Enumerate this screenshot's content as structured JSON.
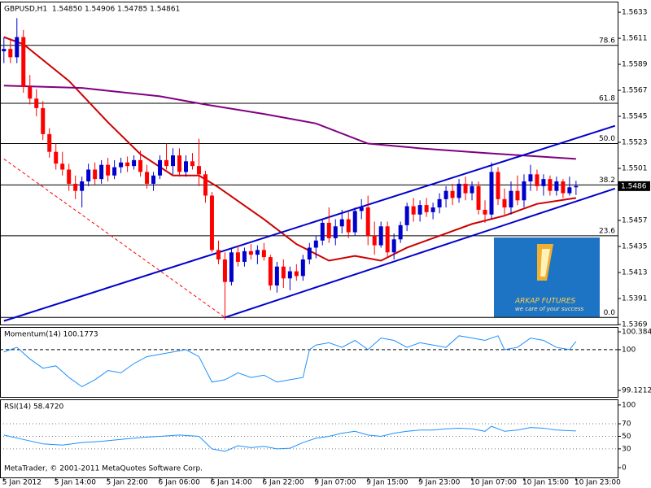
{
  "chart_data": [
    {
      "type": "candlestick",
      "title": "GBPUSD,H1  1.54850 1.54906 1.54785 1.54861",
      "xlim": [
        -0.6,
        94.4
      ],
      "ylim": [
        1.5369,
        1.5642
      ],
      "yticks": [
        1.5633,
        1.5611,
        1.5589,
        1.5567,
        1.5545,
        1.5523,
        1.5501,
        1.5457,
        1.5435,
        1.5413,
        1.5391,
        1.5369
      ],
      "last_price": 1.5486,
      "up_color": "#0000cc",
      "down_color": "#ff0000",
      "candles": [
        [
          1.56,
          1.5612,
          1.559,
          1.5602
        ],
        [
          1.5602,
          1.561,
          1.559,
          1.5595
        ],
        [
          1.5595,
          1.5628,
          1.559,
          1.5612
        ],
        [
          1.5612,
          1.5618,
          1.5565,
          1.557
        ],
        [
          1.557,
          1.558,
          1.5555,
          1.556
        ],
        [
          1.556,
          1.5568,
          1.5545,
          1.5552
        ],
        [
          1.5552,
          1.5558,
          1.5525,
          1.553
        ],
        [
          1.553,
          1.5535,
          1.551,
          1.5515
        ],
        [
          1.5515,
          1.5522,
          1.55,
          1.5505
        ],
        [
          1.5505,
          1.5515,
          1.5495,
          1.55
        ],
        [
          1.55,
          1.5505,
          1.5482,
          1.5488
        ],
        [
          1.5488,
          1.5495,
          1.5475,
          1.5482
        ],
        [
          1.5482,
          1.5494,
          1.5468,
          1.549
        ],
        [
          1.549,
          1.5505,
          1.5486,
          1.55
        ],
        [
          1.55,
          1.5506,
          1.5487,
          1.5492
        ],
        [
          1.5492,
          1.5508,
          1.5488,
          1.5504
        ],
        [
          1.5504,
          1.551,
          1.549,
          1.5495
        ],
        [
          1.5495,
          1.5508,
          1.5492,
          1.5502
        ],
        [
          1.5502,
          1.551,
          1.5497,
          1.5506
        ],
        [
          1.5506,
          1.5511,
          1.5498,
          1.5503
        ],
        [
          1.5503,
          1.5512,
          1.55,
          1.5508
        ],
        [
          1.5508,
          1.5516,
          1.5494,
          1.5498
        ],
        [
          1.5498,
          1.5504,
          1.5484,
          1.5488
        ],
        [
          1.5488,
          1.5498,
          1.5482,
          1.5495
        ],
        [
          1.5495,
          1.5512,
          1.5492,
          1.5508
        ],
        [
          1.5508,
          1.5522,
          1.55,
          1.5503
        ],
        [
          1.5503,
          1.5518,
          1.5496,
          1.5512
        ],
        [
          1.5512,
          1.5518,
          1.5494,
          1.5498
        ],
        [
          1.5498,
          1.5512,
          1.5494,
          1.5507
        ],
        [
          1.5507,
          1.5514,
          1.55,
          1.5503
        ],
        [
          1.5503,
          1.5526,
          1.5486,
          1.5496
        ],
        [
          1.5496,
          1.5499,
          1.5472,
          1.5478
        ],
        [
          1.5478,
          1.5481,
          1.543,
          1.5432
        ],
        [
          1.5432,
          1.544,
          1.542,
          1.5424
        ],
        [
          1.5424,
          1.543,
          1.5373,
          1.5405
        ],
        [
          1.5405,
          1.5434,
          1.5402,
          1.543
        ],
        [
          1.543,
          1.5436,
          1.5418,
          1.5422
        ],
        [
          1.5422,
          1.5434,
          1.5418,
          1.5431
        ],
        [
          1.5431,
          1.5437,
          1.5424,
          1.5428
        ],
        [
          1.5428,
          1.5436,
          1.542,
          1.5432
        ],
        [
          1.5432,
          1.5438,
          1.5423,
          1.5426
        ],
        [
          1.5426,
          1.5428,
          1.5398,
          1.5402
        ],
        [
          1.5402,
          1.5422,
          1.5396,
          1.5418
        ],
        [
          1.5418,
          1.5424,
          1.54,
          1.5408
        ],
        [
          1.5408,
          1.5418,
          1.5398,
          1.5414
        ],
        [
          1.5414,
          1.542,
          1.5406,
          1.541
        ],
        [
          1.541,
          1.5428,
          1.5406,
          1.5424
        ],
        [
          1.5424,
          1.5438,
          1.542,
          1.5434
        ],
        [
          1.5434,
          1.5444,
          1.5425,
          1.544
        ],
        [
          1.544,
          1.5458,
          1.5436,
          1.5455
        ],
        [
          1.5455,
          1.5468,
          1.5438,
          1.5442
        ],
        [
          1.5442,
          1.5458,
          1.5436,
          1.5452
        ],
        [
          1.5452,
          1.5466,
          1.5446,
          1.5458
        ],
        [
          1.5458,
          1.5464,
          1.5442,
          1.5447
        ],
        [
          1.5447,
          1.5468,
          1.5444,
          1.5465
        ],
        [
          1.5465,
          1.5475,
          1.5458,
          1.5468
        ],
        [
          1.5468,
          1.5478,
          1.5436,
          1.5444
        ],
        [
          1.5444,
          1.5456,
          1.5428,
          1.5436
        ],
        [
          1.5436,
          1.5456,
          1.5434,
          1.5452
        ],
        [
          1.5452,
          1.5456,
          1.5426,
          1.543
        ],
        [
          1.543,
          1.5446,
          1.5424,
          1.5441
        ],
        [
          1.5441,
          1.5456,
          1.5438,
          1.5453
        ],
        [
          1.5453,
          1.5472,
          1.5448,
          1.5469
        ],
        [
          1.5469,
          1.5476,
          1.5456,
          1.5462
        ],
        [
          1.5462,
          1.5474,
          1.5456,
          1.547
        ],
        [
          1.547,
          1.5476,
          1.546,
          1.5464
        ],
        [
          1.5464,
          1.5472,
          1.5458,
          1.5468
        ],
        [
          1.5468,
          1.548,
          1.5463,
          1.5475
        ],
        [
          1.5475,
          1.5486,
          1.5468,
          1.5482
        ],
        [
          1.5482,
          1.5488,
          1.547,
          1.5476
        ],
        [
          1.5476,
          1.5492,
          1.5472,
          1.5488
        ],
        [
          1.5488,
          1.5494,
          1.5474,
          1.548
        ],
        [
          1.548,
          1.549,
          1.5474,
          1.5486
        ],
        [
          1.5486,
          1.549,
          1.5462,
          1.5466
        ],
        [
          1.5466,
          1.5474,
          1.5455,
          1.5462
        ],
        [
          1.5462,
          1.5506,
          1.5458,
          1.5498
        ],
        [
          1.5498,
          1.5502,
          1.547,
          1.5475
        ],
        [
          1.5475,
          1.5484,
          1.5462,
          1.5468
        ],
        [
          1.5468,
          1.549,
          1.5462,
          1.5482
        ],
        [
          1.5482,
          1.5495,
          1.547,
          1.5474
        ],
        [
          1.5474,
          1.5496,
          1.5468,
          1.549
        ],
        [
          1.549,
          1.5504,
          1.5482,
          1.5496
        ],
        [
          1.5496,
          1.55,
          1.5482,
          1.5486
        ],
        [
          1.5486,
          1.5496,
          1.5478,
          1.5492
        ],
        [
          1.5492,
          1.5495,
          1.5478,
          1.5482
        ],
        [
          1.5482,
          1.5494,
          1.5478,
          1.549
        ],
        [
          1.549,
          1.5492,
          1.5476,
          1.548
        ],
        [
          1.548,
          1.5494,
          1.5478,
          1.5485
        ],
        [
          1.5485,
          1.54906,
          1.54785,
          1.54861
        ]
      ],
      "fib_levels": [
        {
          "value": 1.5605,
          "label": "78.6"
        },
        {
          "value": 1.5556,
          "label": "61.8"
        },
        {
          "value": 1.5522,
          "label": "50.0"
        },
        {
          "value": 1.5487,
          "label": "38.2"
        },
        {
          "value": 1.5444,
          "label": "23.6"
        },
        {
          "value": 1.5375,
          "label": "0.0"
        }
      ],
      "lines": [
        {
          "color": "#cc0000",
          "width": 2,
          "style": "solid",
          "x": [
            0,
            3,
            10,
            16,
            21,
            26,
            30,
            33,
            40,
            45,
            50,
            54,
            58,
            62,
            67,
            72,
            77,
            82,
            88
          ],
          "values": [
            1.5612,
            1.5606,
            1.5575,
            1.554,
            1.5513,
            1.5495,
            1.5495,
            1.5485,
            1.5458,
            1.5437,
            1.5423,
            1.5427,
            1.5423,
            1.5434,
            1.5444,
            1.5454,
            1.5461,
            1.5471,
            1.5476
          ]
        },
        {
          "color": "#800080",
          "width": 2,
          "style": "solid",
          "x": [
            0,
            12,
            24,
            31,
            40,
            48,
            56,
            64,
            74,
            88
          ],
          "values": [
            1.5571,
            1.5569,
            1.5562,
            1.5555,
            1.5547,
            1.5539,
            1.5522,
            1.5518,
            1.5514,
            1.5509
          ]
        },
        {
          "color": "#0000cc",
          "width": 2,
          "style": "solid",
          "x": [
            0,
            94
          ],
          "values": [
            1.5372,
            1.5537
          ]
        },
        {
          "color": "#0000cc",
          "width": 2,
          "style": "solid",
          "x": [
            34,
            94
          ],
          "values": [
            1.5375,
            1.5484
          ]
        },
        {
          "color": "#ff0000",
          "width": 1,
          "style": "dashed",
          "x": [
            0,
            34
          ],
          "values": [
            1.5509,
            1.5375
          ]
        }
      ]
    },
    {
      "type": "line",
      "title": "Momentum(14) 100.1773",
      "xlim": [
        -0.6,
        94.4
      ],
      "ylim": [
        98.98,
        100.49
      ],
      "yticks": [
        100.3844,
        100,
        99.1212
      ],
      "levels": [
        100
      ],
      "level_style": "dashed",
      "color": "#1e90ff",
      "x": [
        0,
        2,
        4,
        6,
        8,
        10,
        12,
        14,
        16,
        18,
        20,
        22,
        24,
        26,
        28,
        30,
        32,
        34,
        36,
        38,
        40,
        42,
        44,
        46,
        47,
        48,
        50,
        52,
        54,
        56,
        58,
        60,
        62,
        64,
        66,
        68,
        70,
        72,
        74,
        76,
        77,
        79,
        81,
        83,
        85,
        87,
        88
      ],
      "values": [
        99.95,
        100.05,
        99.8,
        99.6,
        99.65,
        99.4,
        99.2,
        99.35,
        99.55,
        99.5,
        99.7,
        99.85,
        99.9,
        99.95,
        100.0,
        99.85,
        99.3,
        99.35,
        99.5,
        99.4,
        99.45,
        99.3,
        99.35,
        99.4,
        100.0,
        100.1,
        100.15,
        100.05,
        100.2,
        100.0,
        100.25,
        100.2,
        100.05,
        100.15,
        100.1,
        100.05,
        100.3,
        100.25,
        100.2,
        100.3,
        100.0,
        100.05,
        100.25,
        100.2,
        100.05,
        100.0,
        100.1773
      ]
    },
    {
      "type": "line",
      "title": "RSI(14) 58.4720",
      "xlim": [
        -0.6,
        94.4
      ],
      "ylim": [
        -15.6,
        109
      ],
      "yticks": [
        100,
        70,
        50,
        30,
        0
      ],
      "levels": [
        70,
        50,
        30
      ],
      "level_style": "dotted",
      "color": "#1e90ff",
      "x": [
        0,
        3,
        6,
        9,
        12,
        15,
        18,
        21,
        24,
        27,
        30,
        32,
        34,
        36,
        38,
        40,
        42,
        44,
        46,
        48,
        50,
        52,
        54,
        56,
        58,
        60,
        62,
        64,
        66,
        68,
        70,
        72,
        74,
        75,
        77,
        79,
        81,
        83,
        85,
        87,
        88
      ],
      "values": [
        52,
        45,
        38,
        36,
        40,
        42,
        45,
        48,
        50,
        52,
        50,
        30,
        26,
        35,
        32,
        34,
        30,
        31,
        40,
        47,
        50,
        55,
        58,
        52,
        50,
        55,
        58,
        60,
        60,
        62,
        63,
        62,
        58,
        66,
        58,
        60,
        64,
        63,
        60,
        59,
        58.472
      ],
      "xticks": [
        {
          "value": 0,
          "label": "5 Jan 2012"
        },
        {
          "value": 8,
          "label": "5 Jan 14:00"
        },
        {
          "value": 16,
          "label": "5 Jan 22:00"
        },
        {
          "value": 24,
          "label": "6 Jan 06:00"
        },
        {
          "value": 32,
          "label": "6 Jan 14:00"
        },
        {
          "value": 40,
          "label": "6 Jan 22:00"
        },
        {
          "value": 48,
          "label": "9 Jan 07:00"
        },
        {
          "value": 56,
          "label": "9 Jan 15:00"
        },
        {
          "value": 64,
          "label": "9 Jan 23:00"
        },
        {
          "value": 72,
          "label": "10 Jan 07:00"
        },
        {
          "value": 80,
          "label": "10 Jan 15:00"
        },
        {
          "value": 88,
          "label": "10 Jan 23:00"
        }
      ]
    }
  ],
  "logo": {
    "name": "ARKAP FUTURES",
    "tagline": "we care of your success"
  },
  "footer": "MetaTrader, © 2001-2011 MetaQuotes Software Corp."
}
